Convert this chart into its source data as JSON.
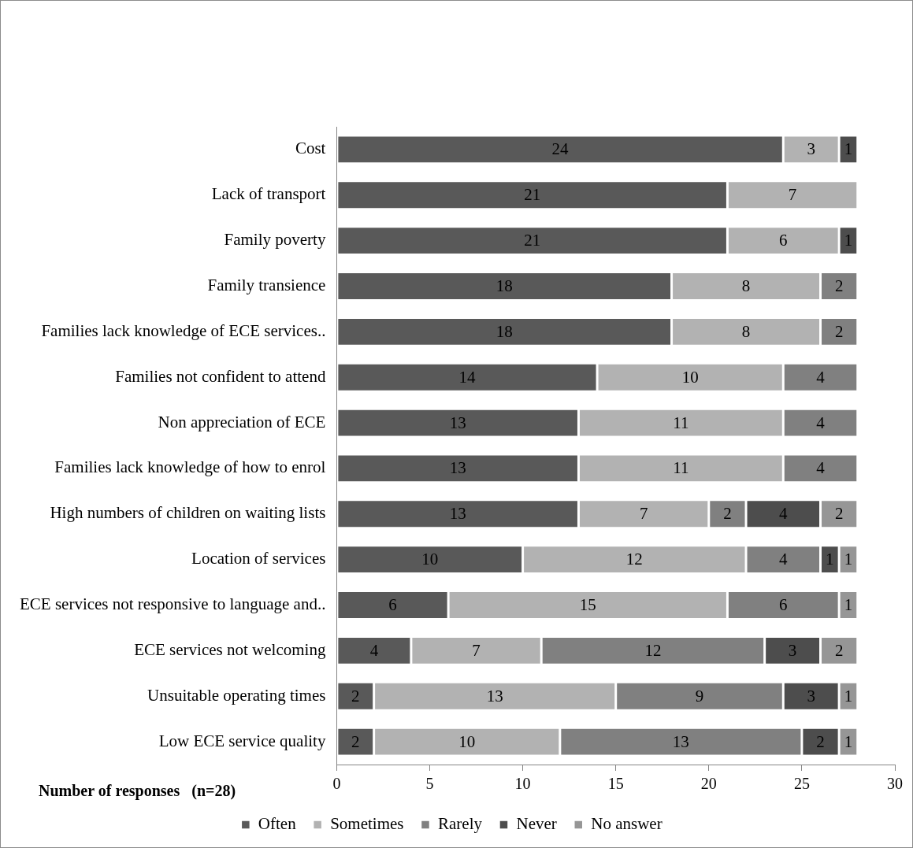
{
  "chart_data": {
    "type": "bar",
    "orientation": "horizontal",
    "stacked": true,
    "xlabel": "Number of responses   (n=28)",
    "categories": [
      "Cost",
      "Lack of transport",
      "Family poverty",
      "Family transience",
      "Families lack knowledge of ECE services..",
      "Families not confident to attend",
      "Non appreciation of ECE",
      "Families lack knowledge of how to enrol",
      "High numbers of children on waiting lists",
      "Location of services",
      "ECE services not responsive to language and..",
      "ECE services not welcoming",
      "Unsuitable operating times",
      "Low ECE service quality"
    ],
    "series": [
      {
        "name": "Often",
        "color": "#595959",
        "values": [
          24,
          21,
          21,
          18,
          18,
          14,
          13,
          13,
          13,
          10,
          6,
          4,
          2,
          2
        ]
      },
      {
        "name": "Sometimes",
        "color": "#b2b2b2",
        "values": [
          3,
          7,
          6,
          8,
          8,
          10,
          11,
          11,
          7,
          12,
          15,
          7,
          13,
          10
        ]
      },
      {
        "name": "Rarely",
        "color": "#808080",
        "values": [
          null,
          null,
          null,
          2,
          2,
          4,
          4,
          4,
          2,
          4,
          6,
          12,
          9,
          13
        ]
      },
      {
        "name": "Never",
        "color": "#4d4d4d",
        "values": [
          1,
          null,
          1,
          null,
          null,
          null,
          null,
          null,
          4,
          1,
          null,
          3,
          3,
          2
        ]
      },
      {
        "name": "No answer",
        "color": "#969696",
        "values": [
          null,
          null,
          null,
          null,
          null,
          null,
          null,
          null,
          2,
          1,
          1,
          2,
          1,
          1
        ]
      }
    ],
    "xlim": [
      0,
      30
    ],
    "xticks": [
      0,
      5,
      10,
      15,
      20,
      25,
      30
    ],
    "grid": false,
    "legend": "bottom",
    "data_labels": true
  }
}
